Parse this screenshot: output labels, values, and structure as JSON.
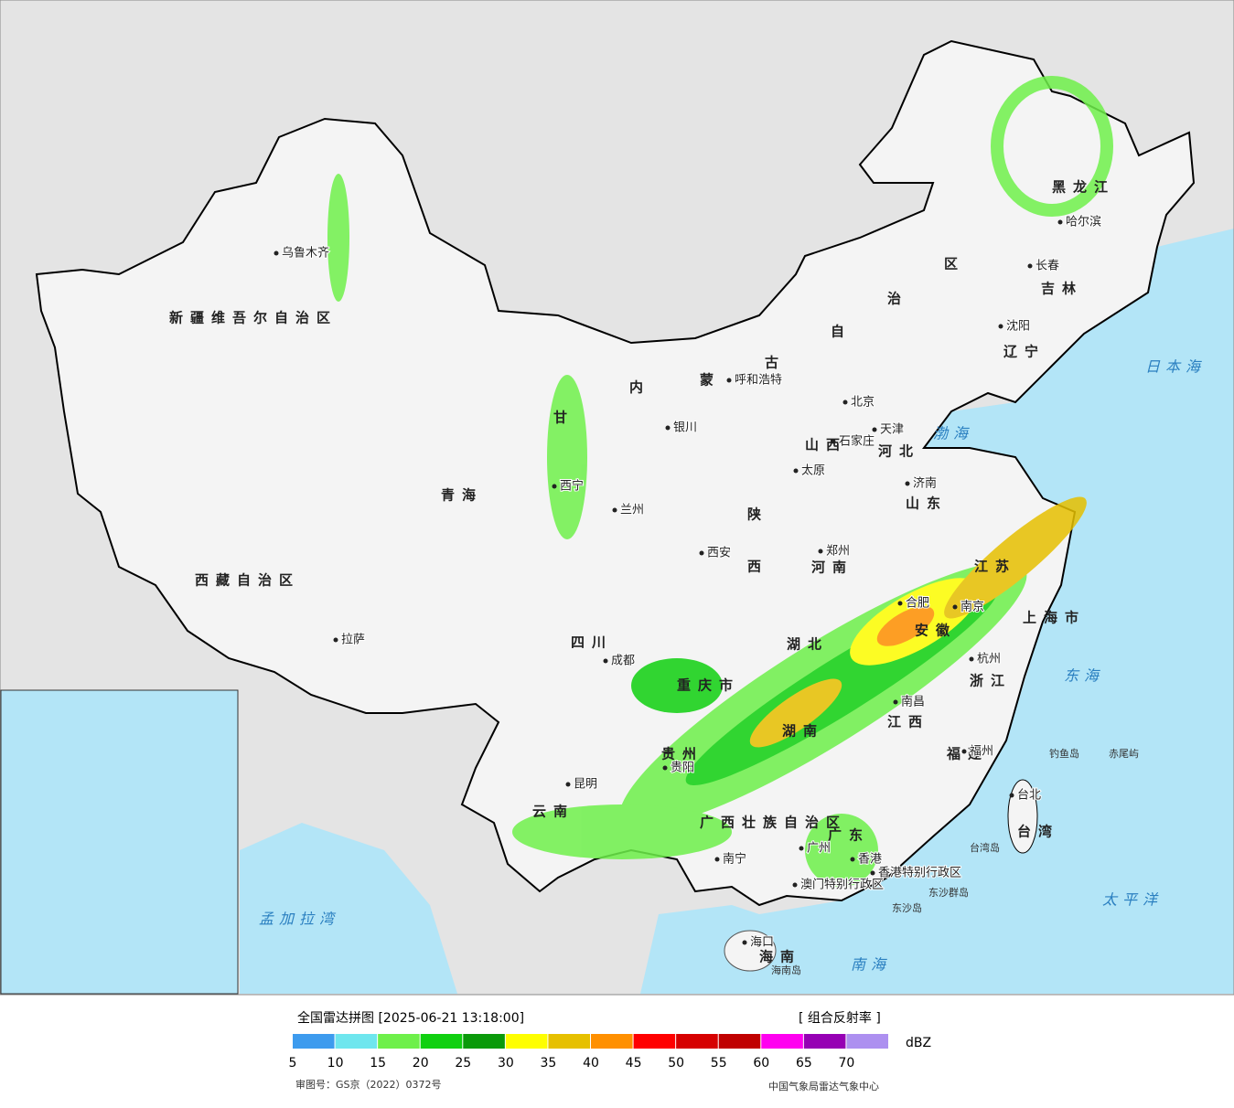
{
  "map": {
    "title": "全国雷达拼图 [2025-06-21 13:18:00]",
    "product": "[ 组合反射率 ]",
    "legend": {
      "colors": [
        "#3d9bee",
        "#6ee6ee",
        "#6ef04a",
        "#10d010",
        "#0a9a0a",
        "#fefe00",
        "#e6c000",
        "#ff9000",
        "#ff0000",
        "#d60000",
        "#c00000",
        "#ff00f0",
        "#9600b4",
        "#ad90f0"
      ],
      "ticks": [
        5,
        10,
        15,
        20,
        25,
        30,
        35,
        40,
        45,
        50,
        55,
        60,
        65,
        70
      ],
      "unit": "dBZ"
    },
    "approval": "审图号：GS京（2022）0372号",
    "source": "中国气象局雷达气象中心",
    "provinces": [
      "新疆维吾尔自治区",
      "西藏自治区",
      "青海",
      "甘",
      "内",
      "蒙",
      "古",
      "自",
      "治",
      "区",
      "黑龙江",
      "吉林",
      "辽宁",
      "河北",
      "山西",
      "山东",
      "陕",
      "西",
      "河南",
      "四川",
      "重庆市",
      "湖北",
      "安徽",
      "江苏",
      "上海市",
      "浙江",
      "江西",
      "湖南",
      "贵州",
      "云南",
      "广西壮族自治区",
      "广东",
      "福建",
      "台湾",
      "海南"
    ],
    "cities": [
      "乌鲁木齐",
      "拉萨",
      "西宁",
      "兰州",
      "呼和浩特",
      "银川",
      "北京",
      "天津",
      "石家庄",
      "太原",
      "济南",
      "西安",
      "郑州",
      "成都",
      "合肥",
      "南京",
      "杭州",
      "南昌",
      "贵阳",
      "昆明",
      "南宁",
      "广州",
      "香港",
      "香港特别行政区",
      "澳门特别行政区",
      "福州",
      "台北",
      "海口",
      "长春",
      "沈阳",
      "哈尔滨"
    ],
    "seas": [
      "日本海",
      "渤海",
      "东海",
      "太平洋",
      "南海",
      "孟加拉湾"
    ],
    "islands": [
      "钓鱼岛",
      "赤尾屿",
      "台湾岛",
      "东沙群岛",
      "东沙岛",
      "海南岛"
    ]
  }
}
